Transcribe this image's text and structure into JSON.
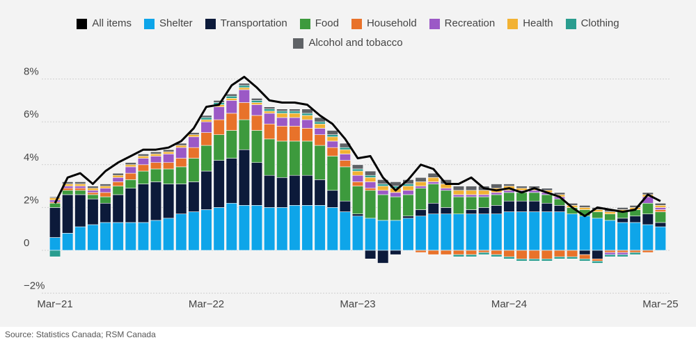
{
  "chart_data": {
    "type": "bar",
    "title": "",
    "xlabel": "",
    "ylabel": "",
    "ylim": [
      -2,
      8.5
    ],
    "yticks": [
      -2,
      0,
      2,
      4,
      6,
      8
    ],
    "ytick_labels": [
      "−2%",
      "0",
      "2%",
      "4%",
      "6%",
      "8%"
    ],
    "grid": true,
    "legend_position": "top-center",
    "categories": [
      "Mar-21",
      "Apr-21",
      "May-21",
      "Jun-21",
      "Jul-21",
      "Aug-21",
      "Sep-21",
      "Oct-21",
      "Nov-21",
      "Dec-21",
      "Jan-22",
      "Feb-22",
      "Mar-22",
      "Apr-22",
      "May-22",
      "Jun-22",
      "Jul-22",
      "Aug-22",
      "Sep-22",
      "Oct-22",
      "Nov-22",
      "Dec-22",
      "Jan-23",
      "Feb-23",
      "Mar-23",
      "Apr-23",
      "May-23",
      "Jun-23",
      "Jul-23",
      "Aug-23",
      "Sep-23",
      "Oct-23",
      "Nov-23",
      "Dec-23",
      "Jan-24",
      "Feb-24",
      "Mar-24",
      "Apr-24",
      "May-24",
      "Jun-24",
      "Jul-24",
      "Aug-24",
      "Sep-24",
      "Oct-24",
      "Nov-24",
      "Dec-24",
      "Jan-25",
      "Feb-25",
      "Mar-25"
    ],
    "x_tick_labels": [
      {
        "index": 0,
        "label": "Mar−21"
      },
      {
        "index": 12,
        "label": "Mar−22"
      },
      {
        "index": 24,
        "label": "Mar−23"
      },
      {
        "index": 36,
        "label": "Mar−24"
      },
      {
        "index": 48,
        "label": "Mar−25"
      }
    ],
    "series": [
      {
        "name": "Shelter",
        "kind": "bar",
        "color": "#0ea5e9",
        "values": [
          0.6,
          0.8,
          1.1,
          1.2,
          1.3,
          1.3,
          1.3,
          1.3,
          1.4,
          1.5,
          1.7,
          1.8,
          1.9,
          2.0,
          2.2,
          2.1,
          2.1,
          2.0,
          2.0,
          2.1,
          2.1,
          2.1,
          2.0,
          1.8,
          1.6,
          1.5,
          1.4,
          1.4,
          1.5,
          1.6,
          1.7,
          1.7,
          1.7,
          1.7,
          1.7,
          1.7,
          1.8,
          1.8,
          1.8,
          1.8,
          1.8,
          1.7,
          1.6,
          1.5,
          1.4,
          1.3,
          1.3,
          1.2,
          1.1
        ]
      },
      {
        "name": "Transportation",
        "kind": "bar",
        "color": "#0c1a3a",
        "values": [
          1.4,
          1.8,
          1.5,
          1.2,
          0.9,
          1.3,
          1.6,
          1.8,
          1.8,
          1.6,
          1.4,
          1.4,
          1.8,
          2.2,
          2.1,
          2.6,
          2.0,
          1.5,
          1.4,
          1.4,
          1.4,
          1.2,
          0.8,
          0.5,
          0.1,
          -0.4,
          -0.6,
          -0.2,
          0.1,
          0.3,
          0.5,
          0.3,
          0.0,
          0.2,
          0.3,
          0.4,
          0.5,
          0.5,
          0.5,
          0.4,
          0.3,
          0.0,
          -0.2,
          -0.4,
          0.0,
          0.2,
          0.3,
          0.5,
          0.2
        ]
      },
      {
        "name": "Food",
        "kind": "bar",
        "color": "#3d9a3d",
        "values": [
          0.2,
          0.2,
          0.2,
          0.2,
          0.3,
          0.4,
          0.4,
          0.6,
          0.6,
          0.7,
          0.8,
          1.1,
          1.2,
          1.2,
          1.3,
          1.4,
          1.5,
          1.7,
          1.7,
          1.6,
          1.6,
          1.6,
          1.6,
          1.6,
          1.3,
          1.3,
          1.2,
          1.1,
          1.0,
          1.0,
          0.9,
          0.8,
          0.8,
          0.6,
          0.5,
          0.5,
          0.4,
          0.4,
          0.4,
          0.4,
          0.3,
          0.3,
          0.3,
          0.3,
          0.3,
          0.3,
          0.3,
          0.5,
          0.5
        ]
      },
      {
        "name": "Household",
        "kind": "bar",
        "color": "#e8722a",
        "values": [
          0.05,
          0.1,
          0.1,
          0.1,
          0.2,
          0.2,
          0.3,
          0.3,
          0.3,
          0.3,
          0.4,
          0.5,
          0.6,
          0.7,
          0.8,
          0.8,
          0.7,
          0.7,
          0.7,
          0.7,
          0.6,
          0.5,
          0.4,
          0.3,
          0.2,
          0.1,
          0.0,
          0.0,
          0.0,
          -0.1,
          -0.2,
          -0.2,
          -0.2,
          -0.2,
          -0.1,
          -0.2,
          -0.3,
          -0.4,
          -0.4,
          -0.4,
          -0.3,
          -0.3,
          -0.2,
          -0.1,
          -0.1,
          -0.1,
          -0.1,
          -0.1,
          0.1
        ]
      },
      {
        "name": "Recreation",
        "kind": "bar",
        "color": "#9b59c6",
        "values": [
          0.1,
          0.1,
          0.1,
          0.1,
          0.2,
          0.2,
          0.3,
          0.3,
          0.3,
          0.4,
          0.5,
          0.5,
          0.5,
          0.6,
          0.6,
          0.6,
          0.5,
          0.5,
          0.4,
          0.4,
          0.4,
          0.3,
          0.3,
          0.3,
          0.3,
          0.3,
          0.2,
          0.2,
          0.2,
          0.1,
          0.1,
          0.1,
          0.1,
          0.1,
          0.1,
          0.1,
          0.1,
          0.1,
          0.1,
          0.1,
          0.1,
          0.0,
          0.0,
          0.0,
          -0.1,
          -0.1,
          0.0,
          0.3,
          0.1
        ]
      },
      {
        "name": "Health",
        "kind": "bar",
        "color": "#f2b233",
        "values": [
          0.1,
          0.1,
          0.1,
          0.1,
          0.1,
          0.1,
          0.1,
          0.1,
          0.1,
          0.1,
          0.1,
          0.1,
          0.1,
          0.1,
          0.1,
          0.1,
          0.1,
          0.1,
          0.2,
          0.2,
          0.2,
          0.2,
          0.2,
          0.2,
          0.2,
          0.2,
          0.2,
          0.2,
          0.2,
          0.2,
          0.2,
          0.2,
          0.2,
          0.2,
          0.2,
          0.2,
          0.2,
          0.1,
          0.1,
          0.1,
          0.1,
          0.1,
          0.1,
          0.1,
          0.1,
          0.1,
          0.1,
          0.1,
          0.1
        ]
      },
      {
        "name": "Clothing",
        "kind": "bar",
        "color": "#2a9d8f",
        "values": [
          -0.3,
          0.0,
          0.0,
          0.0,
          0.0,
          0.0,
          0.0,
          0.0,
          0.0,
          0.0,
          0.0,
          0.0,
          0.1,
          0.1,
          0.1,
          0.1,
          0.1,
          0.1,
          0.1,
          0.1,
          0.1,
          0.1,
          0.1,
          0.1,
          0.1,
          0.1,
          0.1,
          0.1,
          0.1,
          0.0,
          0.0,
          0.0,
          -0.1,
          -0.1,
          -0.1,
          -0.1,
          -0.1,
          -0.1,
          -0.1,
          -0.1,
          -0.1,
          -0.1,
          -0.1,
          -0.1,
          -0.1,
          -0.1,
          -0.1,
          0.0,
          0.0
        ]
      },
      {
        "name": "Alcohol and tobacco",
        "kind": "bar",
        "color": "#5f6266",
        "values": [
          0.05,
          0.1,
          0.1,
          0.1,
          0.1,
          0.1,
          0.1,
          0.1,
          0.1,
          0.1,
          0.1,
          0.1,
          0.1,
          0.1,
          0.1,
          0.1,
          0.1,
          0.1,
          0.1,
          0.1,
          0.2,
          0.2,
          0.2,
          0.2,
          0.2,
          0.2,
          0.2,
          0.2,
          0.2,
          0.2,
          0.2,
          0.2,
          0.2,
          0.2,
          0.2,
          0.2,
          0.1,
          0.1,
          0.1,
          0.1,
          0.1,
          0.1,
          0.1,
          0.1,
          0.1,
          0.1,
          0.1,
          0.1,
          0.1
        ]
      },
      {
        "name": "All items",
        "kind": "line",
        "color": "#000000",
        "values": [
          2.2,
          3.4,
          3.6,
          3.1,
          3.7,
          4.1,
          4.4,
          4.7,
          4.7,
          4.8,
          5.1,
          5.7,
          6.7,
          6.8,
          7.7,
          8.1,
          7.6,
          7.0,
          6.9,
          6.9,
          6.8,
          6.3,
          5.9,
          5.2,
          4.3,
          4.4,
          3.4,
          2.8,
          3.3,
          4.0,
          3.8,
          3.1,
          3.1,
          3.4,
          2.9,
          2.8,
          2.9,
          2.7,
          2.9,
          2.7,
          2.5,
          2.0,
          1.6,
          2.0,
          1.9,
          1.8,
          1.9,
          2.6,
          2.3
        ]
      }
    ]
  },
  "source_note": "Source: Statistics Canada; RSM Canada"
}
